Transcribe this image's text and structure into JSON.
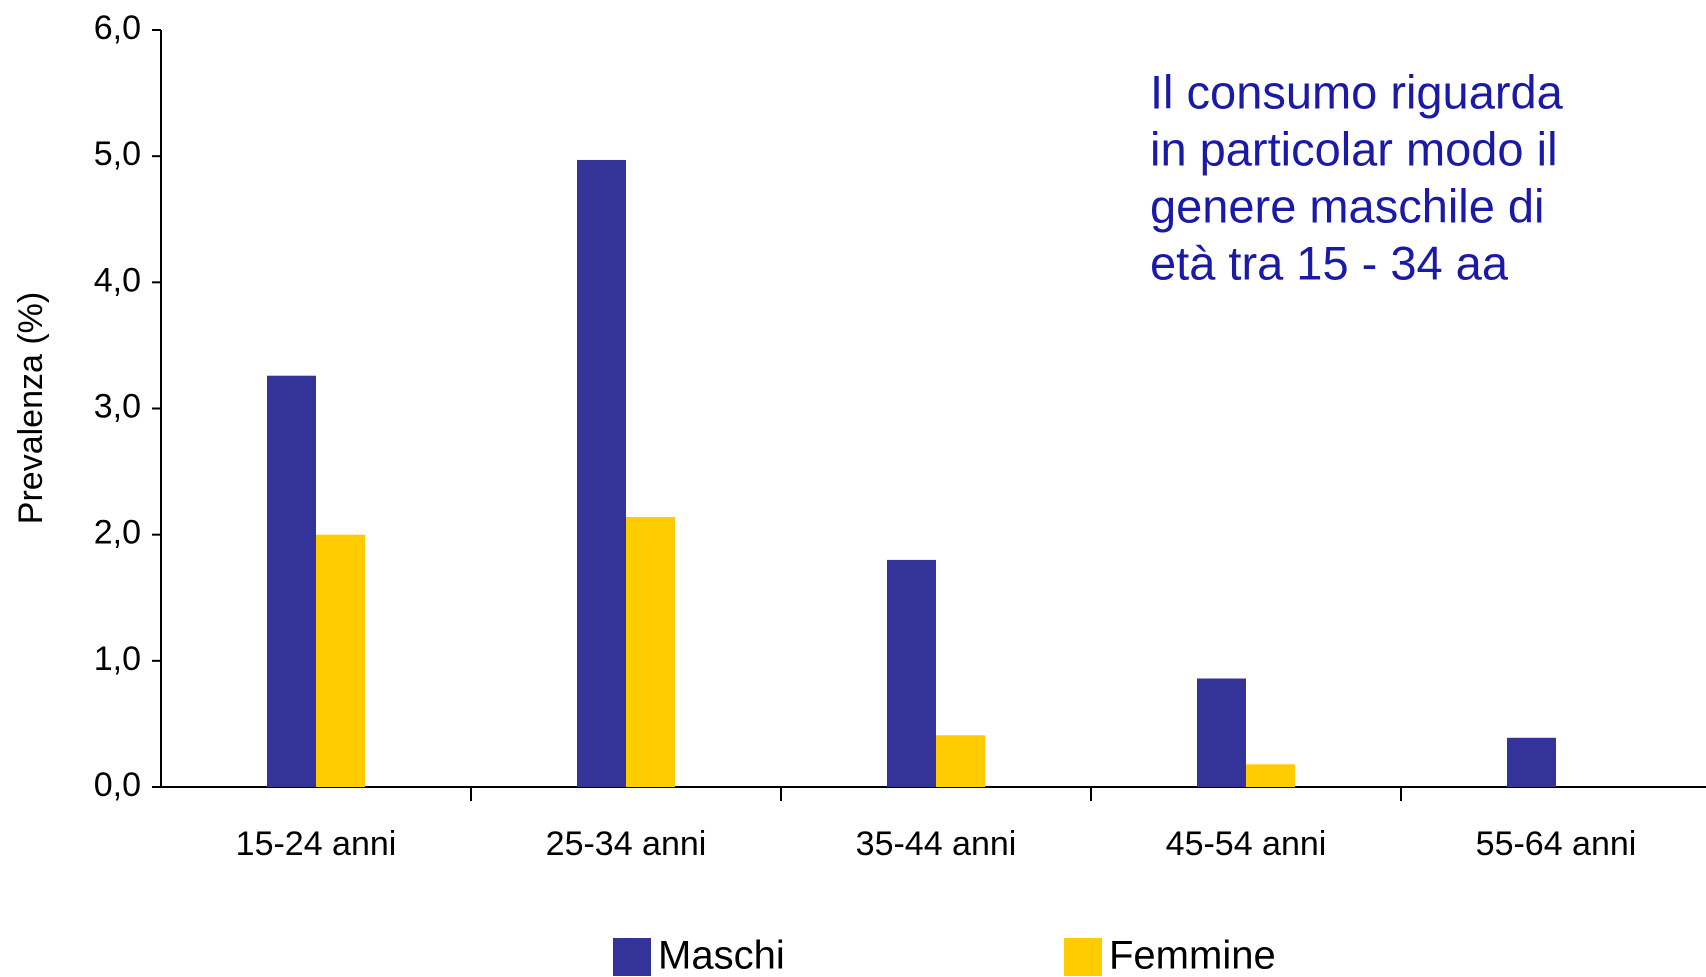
{
  "chart_data": {
    "type": "bar",
    "y_label": "Prevalenza (%)",
    "annotation": [
      "Il consumo riguarda",
      "in particolar modo il",
      "genere maschile di",
      "età tra 15 - 34 aa"
    ],
    "categories": [
      "15-24 anni",
      "25-34 anni",
      "35-44 anni",
      "45-54 anni",
      "55-64 anni"
    ],
    "series": [
      {
        "name": "Maschi",
        "color": "#333399",
        "values": [
          3.26,
          4.97,
          1.8,
          0.86,
          0.39
        ]
      },
      {
        "name": "Femmine",
        "color": "#ffcc00",
        "values": [
          2.0,
          2.14,
          0.41,
          0.18,
          null
        ]
      }
    ],
    "ylim": [
      0,
      6
    ],
    "yticks": [
      {
        "value": 0,
        "label": "0,0"
      },
      {
        "value": 1,
        "label": "1,0"
      },
      {
        "value": 2,
        "label": "2,0"
      },
      {
        "value": 3,
        "label": "3,0"
      },
      {
        "value": 4,
        "label": "4,0"
      },
      {
        "value": 5,
        "label": "5,0"
      },
      {
        "value": 6,
        "label": "6,0"
      }
    ],
    "legend": "bottom"
  }
}
